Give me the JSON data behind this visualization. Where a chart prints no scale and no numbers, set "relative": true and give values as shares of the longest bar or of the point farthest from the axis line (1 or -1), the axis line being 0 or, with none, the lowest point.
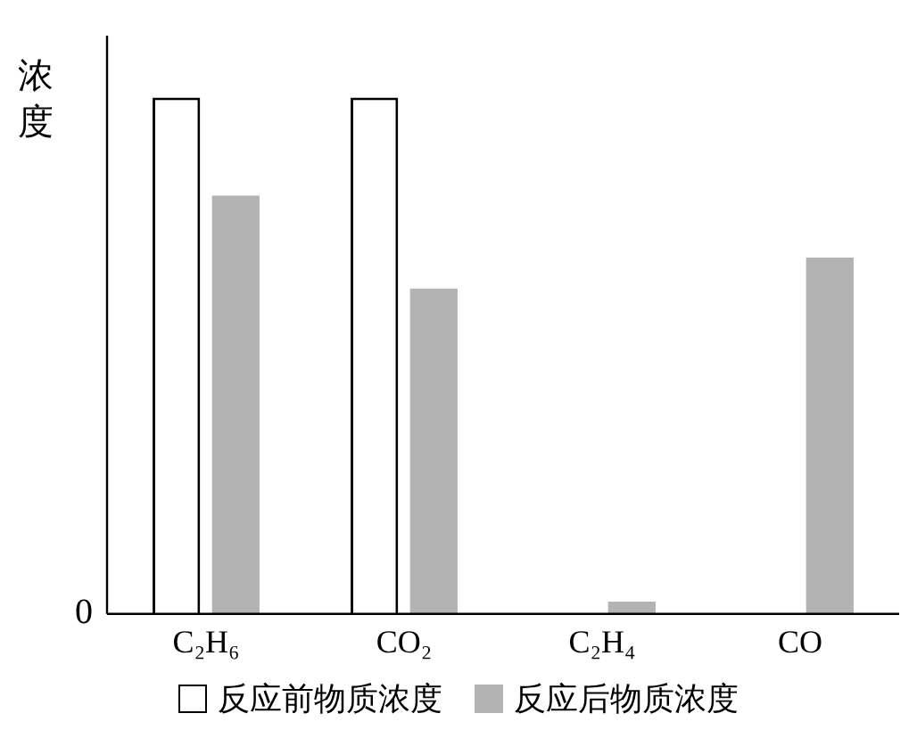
{
  "chart_data": {
    "type": "bar",
    "relative": true,
    "ylabel": "浓度",
    "categories": [
      "C₂H₆",
      "CO₂",
      "C₂H₄",
      "CO"
    ],
    "series": [
      {
        "name": "反应前物质浓度",
        "color": "#ffffff",
        "values": [
          1,
          1,
          null,
          null
        ]
      },
      {
        "name": "反应后物质浓度",
        "color": "#b3b3b3",
        "values": [
          0.81,
          0.63,
          0.024,
          0.69
        ]
      }
    ],
    "annotations": [
      "0"
    ],
    "legend": "bottom",
    "grid": false
  }
}
